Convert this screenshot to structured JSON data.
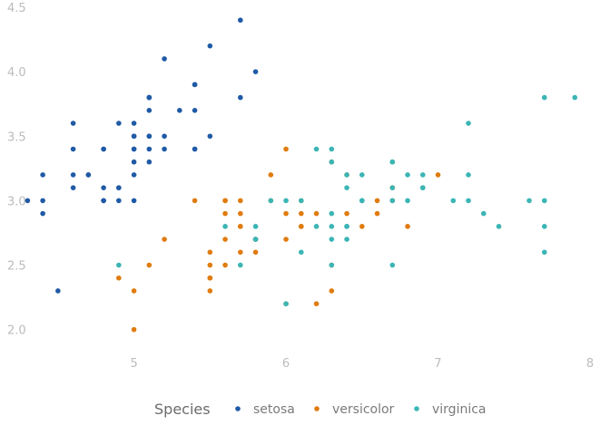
{
  "chart_data": {
    "type": "scatter",
    "title": "",
    "xlabel": "",
    "ylabel": "",
    "xlim": [
      4.25,
      8.0
    ],
    "ylim": [
      1.85,
      4.5
    ],
    "x_ticks": [
      5,
      6,
      7,
      8
    ],
    "y_ticks": [
      2.0,
      2.5,
      3.0,
      3.5,
      4.0,
      4.5
    ],
    "x_tick_labels": [
      "5",
      "6",
      "7",
      "8"
    ],
    "y_tick_labels": [
      "2.0",
      "2.5",
      "3.0",
      "3.5",
      "4.0",
      "4.5"
    ],
    "grid": false,
    "legend": {
      "position": "bottom",
      "title": "Species",
      "items": [
        {
          "label": "setosa",
          "color": "#1f5aa6"
        },
        {
          "label": "versicolor",
          "color": "#e07b0e"
        },
        {
          "label": "virginica",
          "color": "#3bb5b5"
        }
      ]
    },
    "series": [
      {
        "name": "setosa",
        "color": "#1f5aa6",
        "points": [
          [
            5.1,
            3.5
          ],
          [
            4.9,
            3.0
          ],
          [
            4.7,
            3.2
          ],
          [
            4.6,
            3.1
          ],
          [
            5.0,
            3.6
          ],
          [
            5.4,
            3.9
          ],
          [
            4.6,
            3.4
          ],
          [
            5.0,
            3.4
          ],
          [
            4.4,
            2.9
          ],
          [
            4.9,
            3.1
          ],
          [
            5.4,
            3.7
          ],
          [
            4.8,
            3.4
          ],
          [
            4.8,
            3.0
          ],
          [
            4.3,
            3.0
          ],
          [
            5.8,
            4.0
          ],
          [
            5.7,
            4.4
          ],
          [
            5.4,
            3.9
          ],
          [
            5.1,
            3.5
          ],
          [
            5.7,
            3.8
          ],
          [
            5.1,
            3.8
          ],
          [
            5.4,
            3.4
          ],
          [
            5.1,
            3.7
          ],
          [
            4.6,
            3.6
          ],
          [
            5.1,
            3.3
          ],
          [
            4.8,
            3.4
          ],
          [
            5.0,
            3.0
          ],
          [
            5.0,
            3.4
          ],
          [
            5.2,
            3.5
          ],
          [
            5.2,
            3.4
          ],
          [
            4.7,
            3.2
          ],
          [
            4.8,
            3.1
          ],
          [
            5.4,
            3.4
          ],
          [
            5.2,
            4.1
          ],
          [
            5.5,
            4.2
          ],
          [
            4.9,
            3.1
          ],
          [
            5.0,
            3.2
          ],
          [
            5.5,
            3.5
          ],
          [
            4.9,
            3.6
          ],
          [
            4.4,
            3.0
          ],
          [
            5.1,
            3.4
          ],
          [
            5.0,
            3.5
          ],
          [
            4.5,
            2.3
          ],
          [
            4.4,
            3.2
          ],
          [
            5.0,
            3.5
          ],
          [
            5.1,
            3.8
          ],
          [
            4.8,
            3.0
          ],
          [
            5.1,
            3.8
          ],
          [
            4.6,
            3.2
          ],
          [
            5.3,
            3.7
          ],
          [
            5.0,
            3.3
          ]
        ]
      },
      {
        "name": "versicolor",
        "color": "#e07b0e",
        "points": [
          [
            7.0,
            3.2
          ],
          [
            6.4,
            3.2
          ],
          [
            6.9,
            3.1
          ],
          [
            5.5,
            2.3
          ],
          [
            6.5,
            2.8
          ],
          [
            5.7,
            2.8
          ],
          [
            6.3,
            3.3
          ],
          [
            4.9,
            2.4
          ],
          [
            6.6,
            2.9
          ],
          [
            5.2,
            2.7
          ],
          [
            5.0,
            2.0
          ],
          [
            5.9,
            3.0
          ],
          [
            6.0,
            2.2
          ],
          [
            6.1,
            2.9
          ],
          [
            5.6,
            2.9
          ],
          [
            6.7,
            3.1
          ],
          [
            5.6,
            3.0
          ],
          [
            5.8,
            2.7
          ],
          [
            6.2,
            2.2
          ],
          [
            5.6,
            2.5
          ],
          [
            5.9,
            3.2
          ],
          [
            6.1,
            2.8
          ],
          [
            6.3,
            2.5
          ],
          [
            6.1,
            2.8
          ],
          [
            6.4,
            2.9
          ],
          [
            6.6,
            3.0
          ],
          [
            6.8,
            2.8
          ],
          [
            6.7,
            3.0
          ],
          [
            6.0,
            2.9
          ],
          [
            5.7,
            2.6
          ],
          [
            5.5,
            2.4
          ],
          [
            5.5,
            2.4
          ],
          [
            5.8,
            2.7
          ],
          [
            6.0,
            2.7
          ],
          [
            5.4,
            3.0
          ],
          [
            6.0,
            3.4
          ],
          [
            6.7,
            3.1
          ],
          [
            6.3,
            2.3
          ],
          [
            5.6,
            3.0
          ],
          [
            5.5,
            2.5
          ],
          [
            5.5,
            2.6
          ],
          [
            6.1,
            3.0
          ],
          [
            5.8,
            2.6
          ],
          [
            5.0,
            2.3
          ],
          [
            5.6,
            2.7
          ],
          [
            5.7,
            3.0
          ],
          [
            5.7,
            2.9
          ],
          [
            6.2,
            2.9
          ],
          [
            5.1,
            2.5
          ],
          [
            5.7,
            2.8
          ]
        ]
      },
      {
        "name": "virginica",
        "color": "#3bb5b5",
        "points": [
          [
            6.3,
            3.3
          ],
          [
            5.8,
            2.7
          ],
          [
            7.1,
            3.0
          ],
          [
            6.3,
            2.9
          ],
          [
            6.5,
            3.0
          ],
          [
            7.6,
            3.0
          ],
          [
            4.9,
            2.5
          ],
          [
            7.3,
            2.9
          ],
          [
            6.7,
            2.5
          ],
          [
            7.2,
            3.6
          ],
          [
            6.5,
            3.2
          ],
          [
            6.4,
            2.7
          ],
          [
            6.8,
            3.0
          ],
          [
            5.7,
            2.5
          ],
          [
            5.8,
            2.8
          ],
          [
            6.4,
            3.2
          ],
          [
            6.5,
            3.0
          ],
          [
            7.7,
            3.8
          ],
          [
            7.7,
            2.6
          ],
          [
            6.0,
            2.2
          ],
          [
            6.9,
            3.2
          ],
          [
            5.6,
            2.8
          ],
          [
            7.7,
            2.8
          ],
          [
            6.3,
            2.7
          ],
          [
            6.7,
            3.3
          ],
          [
            7.2,
            3.2
          ],
          [
            6.2,
            2.8
          ],
          [
            6.1,
            3.0
          ],
          [
            6.4,
            2.8
          ],
          [
            7.2,
            3.0
          ],
          [
            7.4,
            2.8
          ],
          [
            7.9,
            3.8
          ],
          [
            6.4,
            2.8
          ],
          [
            6.3,
            2.8
          ],
          [
            6.1,
            2.6
          ],
          [
            7.7,
            3.0
          ],
          [
            6.3,
            3.4
          ],
          [
            6.4,
            3.1
          ],
          [
            6.0,
            3.0
          ],
          [
            6.9,
            3.1
          ],
          [
            6.7,
            3.1
          ],
          [
            6.9,
            3.1
          ],
          [
            5.8,
            2.7
          ],
          [
            6.8,
            3.2
          ],
          [
            6.7,
            3.3
          ],
          [
            6.7,
            3.0
          ],
          [
            6.3,
            2.5
          ],
          [
            6.5,
            3.0
          ],
          [
            6.2,
            3.4
          ],
          [
            5.9,
            3.0
          ]
        ]
      }
    ]
  }
}
